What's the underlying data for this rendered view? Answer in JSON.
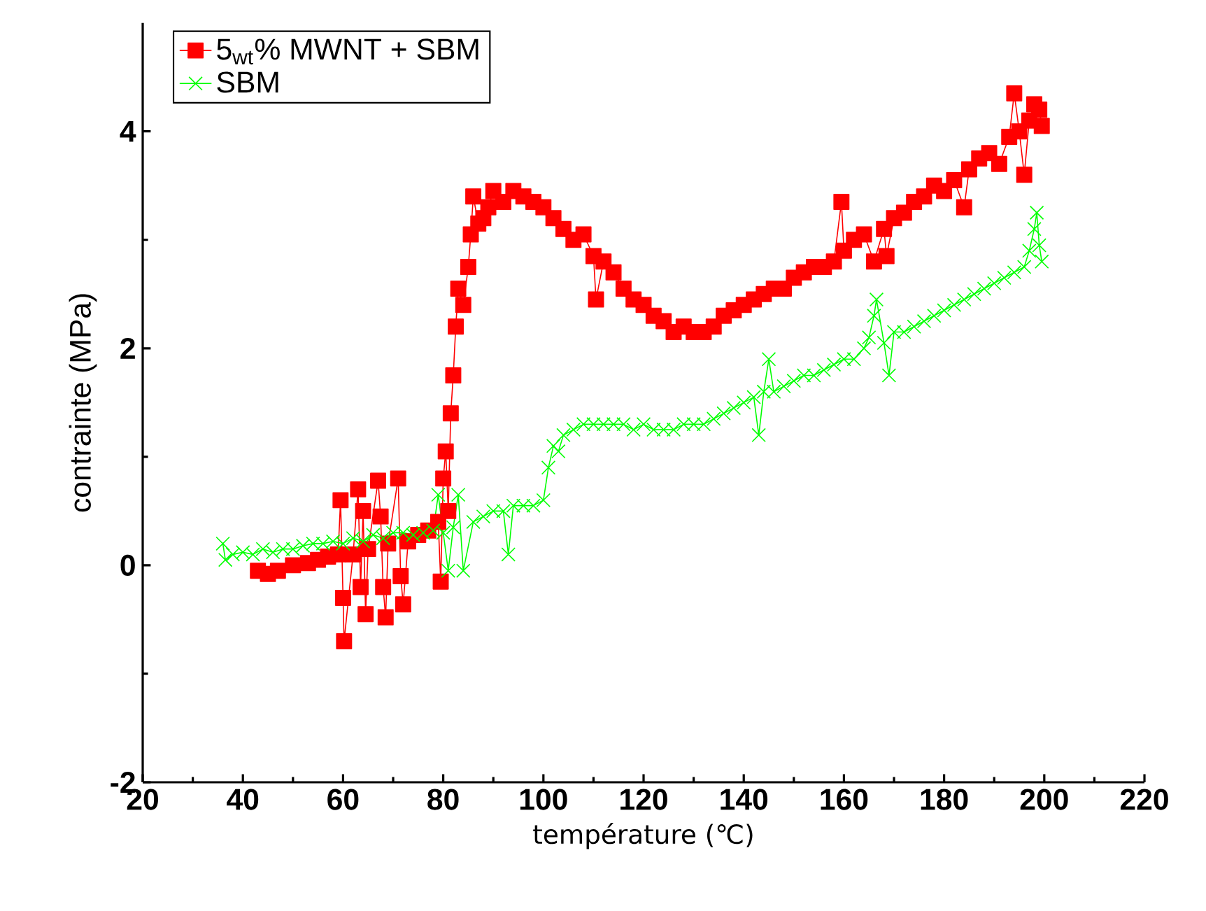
{
  "chart_data": {
    "type": "line",
    "xlabel": "température (℃)",
    "ylabel": "contrainte (MPa)",
    "xlim": [
      20,
      220
    ],
    "ylim": [
      -2,
      5
    ],
    "xticks": [
      20,
      40,
      60,
      80,
      100,
      120,
      140,
      160,
      180,
      200,
      220
    ],
    "yticks": [
      -2,
      0,
      2,
      4
    ],
    "grid": false,
    "legend": "top left",
    "line_style": "solid",
    "series": [
      {
        "name": "5$_{wt}$% MWNT + SBM",
        "color": "#ff0000",
        "marker": "square",
        "x": [
          43,
          45,
          47,
          50,
          53,
          55,
          57,
          59,
          59.5,
          60,
          60.2,
          62,
          63,
          63.5,
          64,
          64.5,
          65,
          67,
          67.5,
          68,
          68.5,
          69,
          71,
          71.5,
          72,
          73,
          75,
          77,
          79,
          79.5,
          80,
          80.5,
          81,
          81.5,
          82,
          82.5,
          83,
          84,
          85,
          85.5,
          86,
          87,
          88,
          89,
          90,
          92,
          94,
          96,
          98,
          100,
          102,
          104,
          106,
          108,
          110,
          110.5,
          112,
          114,
          116,
          118,
          120,
          122,
          124,
          126,
          128,
          130,
          132,
          134,
          136,
          138,
          140,
          142,
          144,
          146,
          148,
          150,
          152,
          154,
          156,
          158,
          159.5,
          160,
          162,
          164,
          166,
          168,
          168.5,
          170,
          172,
          174,
          176,
          178,
          180,
          182,
          184,
          185,
          187,
          189,
          191,
          193,
          194,
          195,
          196,
          197,
          198,
          199,
          199.5
        ],
        "values": [
          -0.05,
          -0.08,
          -0.05,
          0.0,
          0.02,
          0.05,
          0.08,
          0.1,
          0.6,
          -0.3,
          -0.7,
          0.1,
          0.7,
          -0.2,
          0.5,
          -0.45,
          0.15,
          0.78,
          0.45,
          -0.2,
          -0.48,
          0.2,
          0.8,
          -0.1,
          -0.36,
          0.22,
          0.28,
          0.32,
          0.4,
          -0.15,
          0.8,
          1.05,
          0.5,
          1.4,
          1.75,
          2.2,
          2.55,
          2.4,
          2.75,
          3.05,
          3.4,
          3.15,
          3.2,
          3.3,
          3.45,
          3.35,
          3.45,
          3.4,
          3.35,
          3.3,
          3.2,
          3.1,
          3.0,
          3.05,
          2.85,
          2.45,
          2.8,
          2.7,
          2.55,
          2.45,
          2.4,
          2.3,
          2.25,
          2.15,
          2.2,
          2.15,
          2.15,
          2.2,
          2.3,
          2.35,
          2.4,
          2.45,
          2.5,
          2.55,
          2.55,
          2.65,
          2.7,
          2.75,
          2.75,
          2.8,
          3.35,
          2.9,
          3.0,
          3.05,
          2.8,
          3.1,
          2.85,
          3.2,
          3.25,
          3.35,
          3.4,
          3.5,
          3.45,
          3.55,
          3.3,
          3.65,
          3.75,
          3.8,
          3.7,
          3.95,
          4.35,
          4.0,
          3.6,
          4.1,
          4.25,
          4.2,
          4.05
        ]
      },
      {
        "name": "SBM",
        "color": "#00ff00",
        "marker": "cross",
        "x": [
          36,
          36.5,
          38,
          40,
          42,
          44,
          46,
          48,
          50,
          52,
          54,
          56,
          58,
          60,
          62,
          64,
          66,
          68,
          70,
          72,
          74,
          76,
          78,
          79,
          80,
          81,
          82,
          83,
          84,
          86,
          88,
          90,
          92,
          93,
          94,
          96,
          98,
          100,
          101,
          102,
          103,
          104,
          106,
          108,
          110,
          112,
          114,
          116,
          118,
          120,
          122,
          124,
          126,
          128,
          130,
          132,
          134,
          136,
          138,
          140,
          142,
          143,
          144,
          145,
          146,
          148,
          150,
          152,
          154,
          156,
          158,
          160,
          162,
          164,
          165,
          166,
          166.5,
          168,
          169,
          170,
          172,
          174,
          176,
          178,
          180,
          182,
          184,
          186,
          188,
          190,
          192,
          194,
          196,
          197,
          198,
          198.5,
          199,
          199.5
        ],
        "values": [
          0.2,
          0.05,
          0.1,
          0.12,
          0.1,
          0.15,
          0.12,
          0.15,
          0.15,
          0.18,
          0.2,
          0.2,
          0.22,
          0.2,
          0.25,
          0.22,
          0.28,
          0.25,
          0.3,
          0.3,
          0.28,
          0.3,
          0.32,
          0.65,
          0.3,
          -0.05,
          0.35,
          0.65,
          -0.05,
          0.4,
          0.45,
          0.5,
          0.5,
          0.1,
          0.55,
          0.55,
          0.55,
          0.6,
          0.9,
          1.1,
          1.05,
          1.2,
          1.25,
          1.3,
          1.3,
          1.3,
          1.3,
          1.3,
          1.25,
          1.3,
          1.25,
          1.25,
          1.25,
          1.3,
          1.3,
          1.3,
          1.35,
          1.4,
          1.45,
          1.5,
          1.55,
          1.2,
          1.6,
          1.9,
          1.6,
          1.65,
          1.7,
          1.75,
          1.75,
          1.8,
          1.85,
          1.9,
          1.9,
          2.0,
          2.1,
          2.3,
          2.45,
          2.05,
          1.75,
          2.15,
          2.15,
          2.2,
          2.25,
          2.3,
          2.35,
          2.4,
          2.45,
          2.5,
          2.55,
          2.6,
          2.65,
          2.7,
          2.75,
          2.9,
          3.1,
          3.25,
          2.95,
          2.8
        ]
      }
    ]
  }
}
